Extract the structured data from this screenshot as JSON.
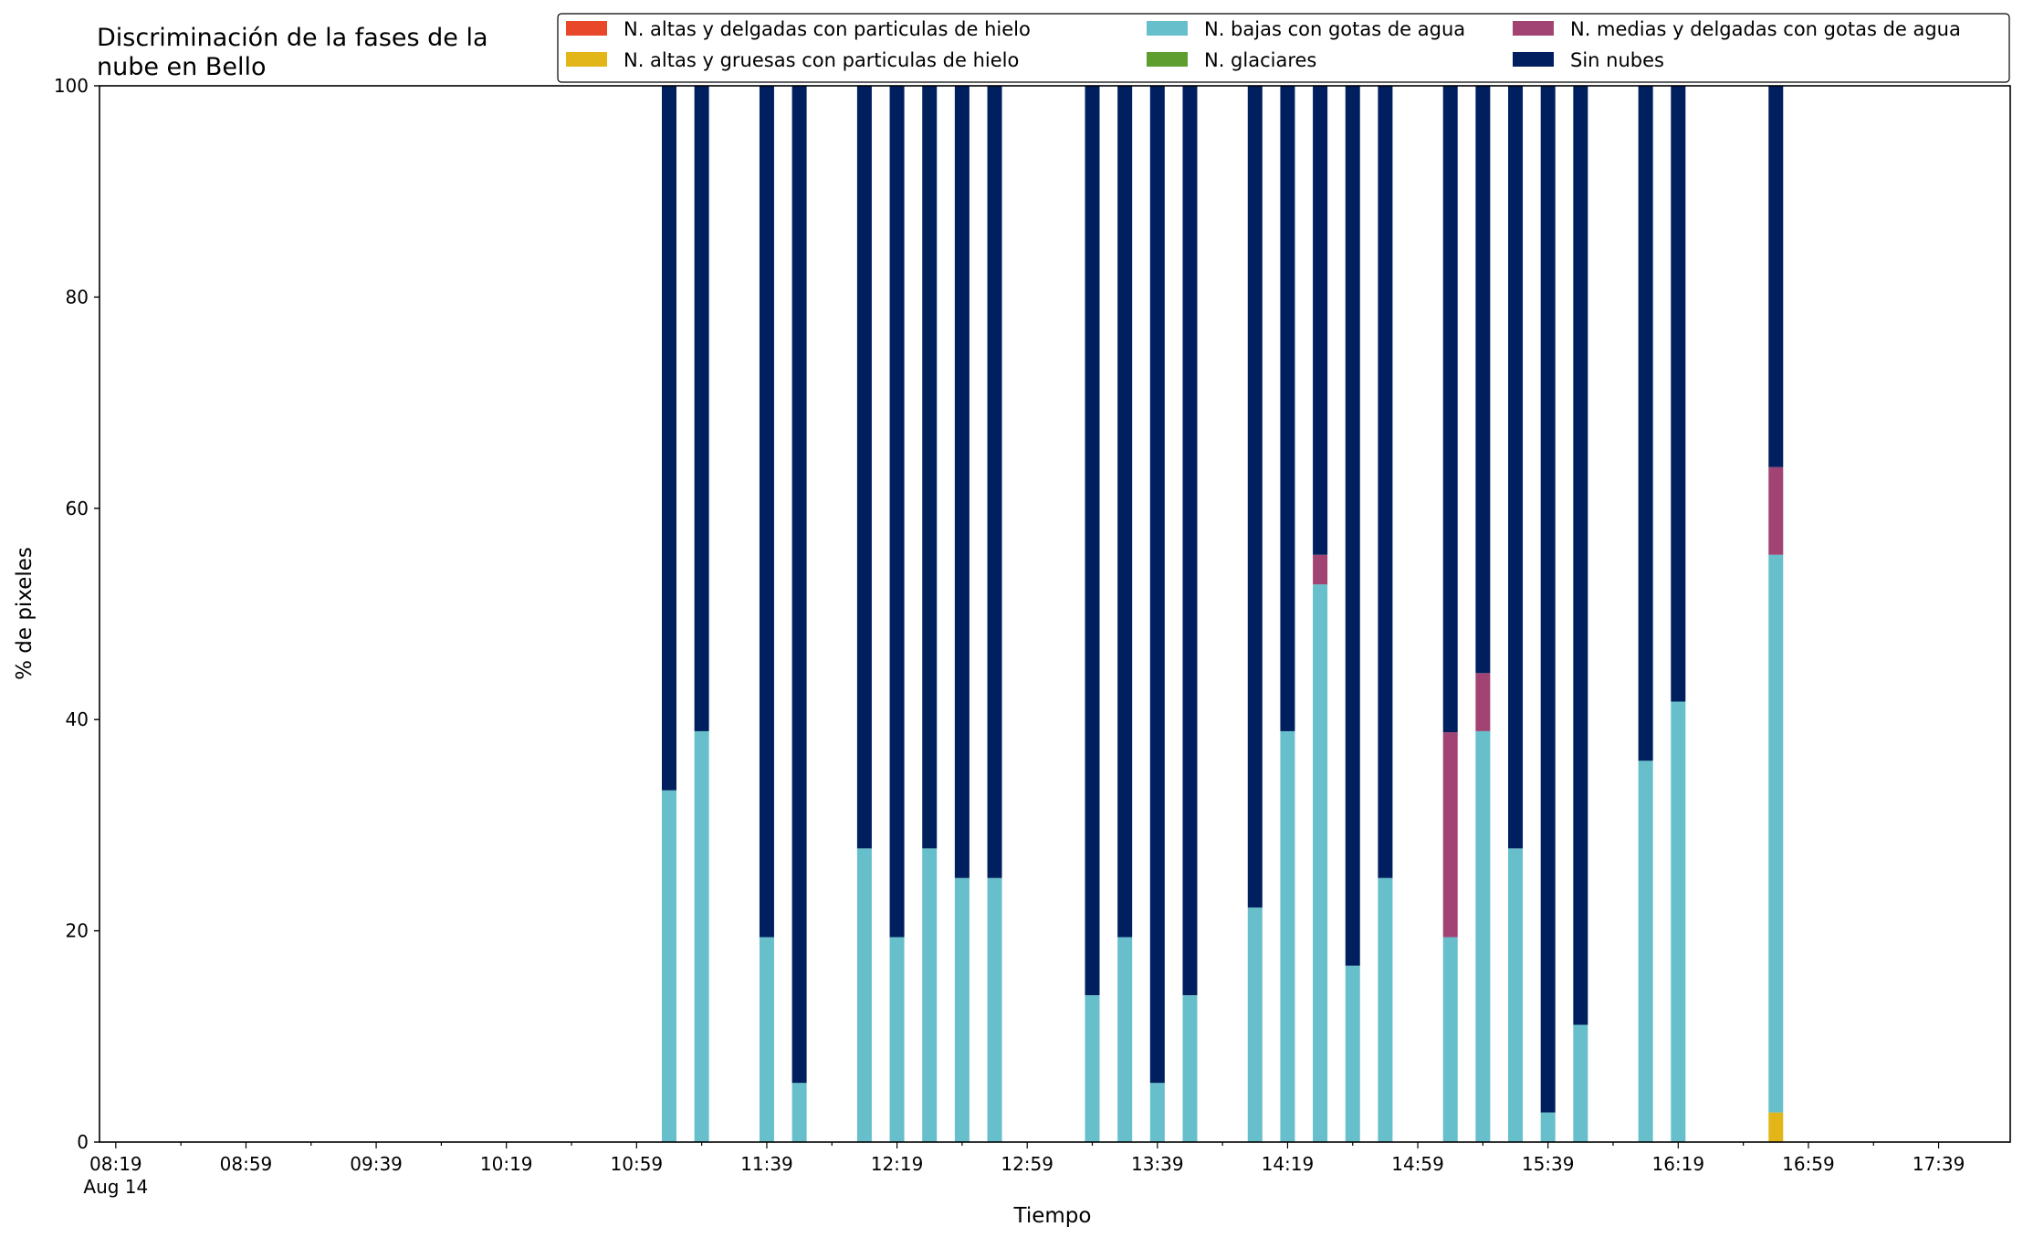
{
  "chart_data": {
    "type": "bar",
    "stacked": true,
    "title_lines": [
      "Discriminación de la fases de la",
      "nube en Bello"
    ],
    "xlabel": "Tiempo",
    "ylabel": "% de pixeles",
    "ylim": [
      0,
      100
    ],
    "yticks": [
      "0",
      "20",
      "40",
      "60",
      "80",
      "100"
    ],
    "xlim_minutes": [
      -5,
      582
    ],
    "xtick_labels": [
      {
        "m": 0,
        "label": "08:19",
        "sub": "Aug 14"
      },
      {
        "m": 40,
        "label": "08:59"
      },
      {
        "m": 80,
        "label": "09:39"
      },
      {
        "m": 120,
        "label": "10:19"
      },
      {
        "m": 160,
        "label": "10:59"
      },
      {
        "m": 200,
        "label": "11:39"
      },
      {
        "m": 240,
        "label": "12:19"
      },
      {
        "m": 280,
        "label": "12:59"
      },
      {
        "m": 320,
        "label": "13:39"
      },
      {
        "m": 360,
        "label": "14:19"
      },
      {
        "m": 400,
        "label": "14:59"
      },
      {
        "m": 440,
        "label": "15:39"
      },
      {
        "m": 480,
        "label": "16:19"
      },
      {
        "m": 520,
        "label": "16:59"
      },
      {
        "m": 560,
        "label": "17:39"
      }
    ],
    "grid": false,
    "legend_position": "top-right",
    "series": [
      {
        "name": "N. altas y delgadas con particulas de hielo",
        "color": "#e8472a"
      },
      {
        "name": "N. altas y gruesas con particulas de hielo",
        "color": "#e2b619"
      },
      {
        "name": "N. bajas con gotas de agua",
        "color": "#66bfcb"
      },
      {
        "name": "N. glaciares",
        "color": "#5d9e2f"
      },
      {
        "name": "N. medias y delgadas con gotas de agua",
        "color": "#a14474"
      },
      {
        "name": "Sin nubes",
        "color": "#001f5f"
      }
    ],
    "bars": [
      {
        "time": "11:09",
        "values": [
          0,
          0,
          33.3,
          0,
          0,
          66.7
        ]
      },
      {
        "time": "11:19",
        "values": [
          0,
          0,
          38.9,
          0,
          0,
          61.1
        ]
      },
      {
        "time": "11:39",
        "values": [
          0,
          0,
          19.4,
          0,
          0,
          80.6
        ]
      },
      {
        "time": "11:49",
        "values": [
          0,
          0,
          5.6,
          0,
          0,
          94.4
        ]
      },
      {
        "time": "12:09",
        "values": [
          0,
          0,
          27.8,
          0,
          0,
          72.2
        ]
      },
      {
        "time": "12:19",
        "values": [
          0,
          0,
          19.4,
          0,
          0,
          80.6
        ]
      },
      {
        "time": "12:29",
        "values": [
          0,
          0,
          27.8,
          0,
          0,
          72.2
        ]
      },
      {
        "time": "12:39",
        "values": [
          0,
          0,
          25.0,
          0,
          0,
          75.0
        ]
      },
      {
        "time": "12:49",
        "values": [
          0,
          0,
          25.0,
          0,
          0,
          75.0
        ]
      },
      {
        "time": "13:19",
        "values": [
          0,
          0,
          13.9,
          0,
          0,
          86.1
        ]
      },
      {
        "time": "13:29",
        "values": [
          0,
          0,
          19.4,
          0,
          0,
          80.6
        ]
      },
      {
        "time": "13:39",
        "values": [
          0,
          0,
          5.6,
          0,
          0,
          94.4
        ]
      },
      {
        "time": "13:49",
        "values": [
          0,
          0,
          13.9,
          0,
          0,
          86.1
        ]
      },
      {
        "time": "14:09",
        "values": [
          0,
          0,
          22.2,
          0,
          0,
          77.8
        ]
      },
      {
        "time": "14:19",
        "values": [
          0,
          0,
          38.9,
          0,
          0,
          61.1
        ]
      },
      {
        "time": "14:29",
        "values": [
          0,
          0,
          52.8,
          0,
          2.8,
          44.4
        ]
      },
      {
        "time": "14:39",
        "values": [
          0,
          0,
          16.7,
          0,
          0,
          83.3
        ]
      },
      {
        "time": "14:49",
        "values": [
          0,
          0,
          25.0,
          0,
          0,
          75.0
        ]
      },
      {
        "time": "15:09",
        "values": [
          0,
          0,
          19.4,
          0,
          19.4,
          61.2
        ]
      },
      {
        "time": "15:19",
        "values": [
          0,
          0,
          38.9,
          0,
          5.5,
          55.6
        ]
      },
      {
        "time": "15:29",
        "values": [
          0,
          0,
          27.8,
          0,
          0,
          72.2
        ]
      },
      {
        "time": "15:39",
        "values": [
          0,
          0,
          2.8,
          0,
          0,
          97.2
        ]
      },
      {
        "time": "15:49",
        "values": [
          0,
          0,
          11.1,
          0,
          0,
          88.9
        ]
      },
      {
        "time": "16:09",
        "values": [
          0,
          0,
          36.1,
          0,
          0,
          63.9
        ]
      },
      {
        "time": "16:19",
        "values": [
          0,
          0,
          41.7,
          0,
          0,
          58.3
        ]
      },
      {
        "time": "16:49",
        "values": [
          0,
          2.8,
          52.8,
          0,
          8.3,
          36.1
        ]
      }
    ]
  }
}
